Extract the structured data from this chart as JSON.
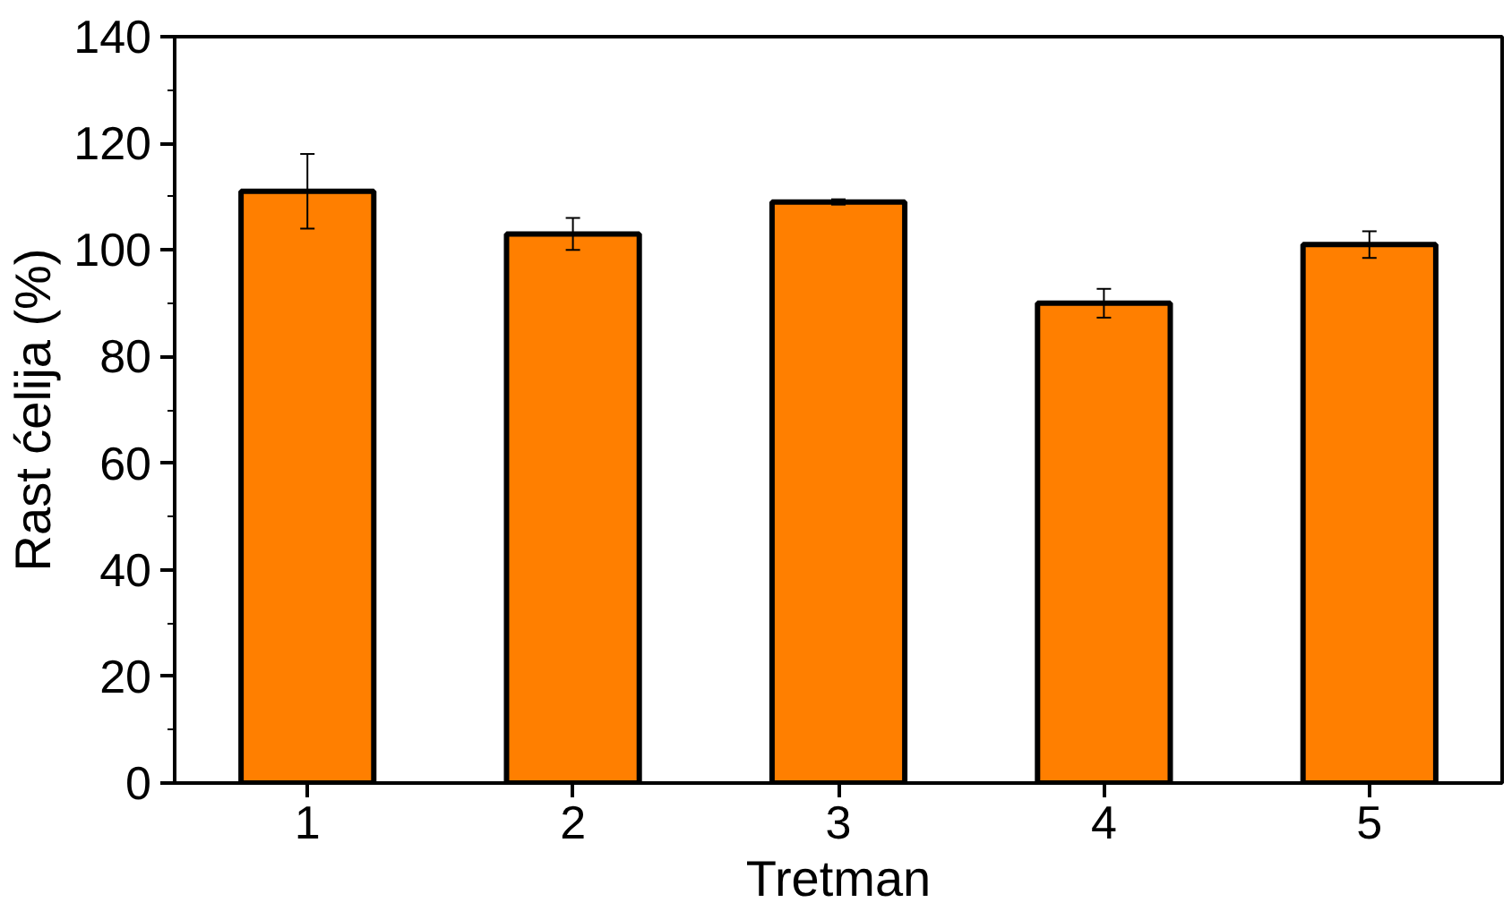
{
  "chart_data": {
    "type": "bar",
    "xlabel": "Tretman",
    "ylabel": "Rast ćelija (%)",
    "categories": [
      "1",
      "2",
      "3",
      "4",
      "5"
    ],
    "values": [
      111,
      103,
      109,
      90,
      101
    ],
    "errors": [
      7,
      3,
      0.5,
      2.7,
      2.5
    ],
    "color": "#ff7f00",
    "ylim": [
      0,
      140
    ],
    "yticks": [
      0,
      20,
      40,
      60,
      80,
      100,
      120,
      140
    ],
    "grid": false
  }
}
